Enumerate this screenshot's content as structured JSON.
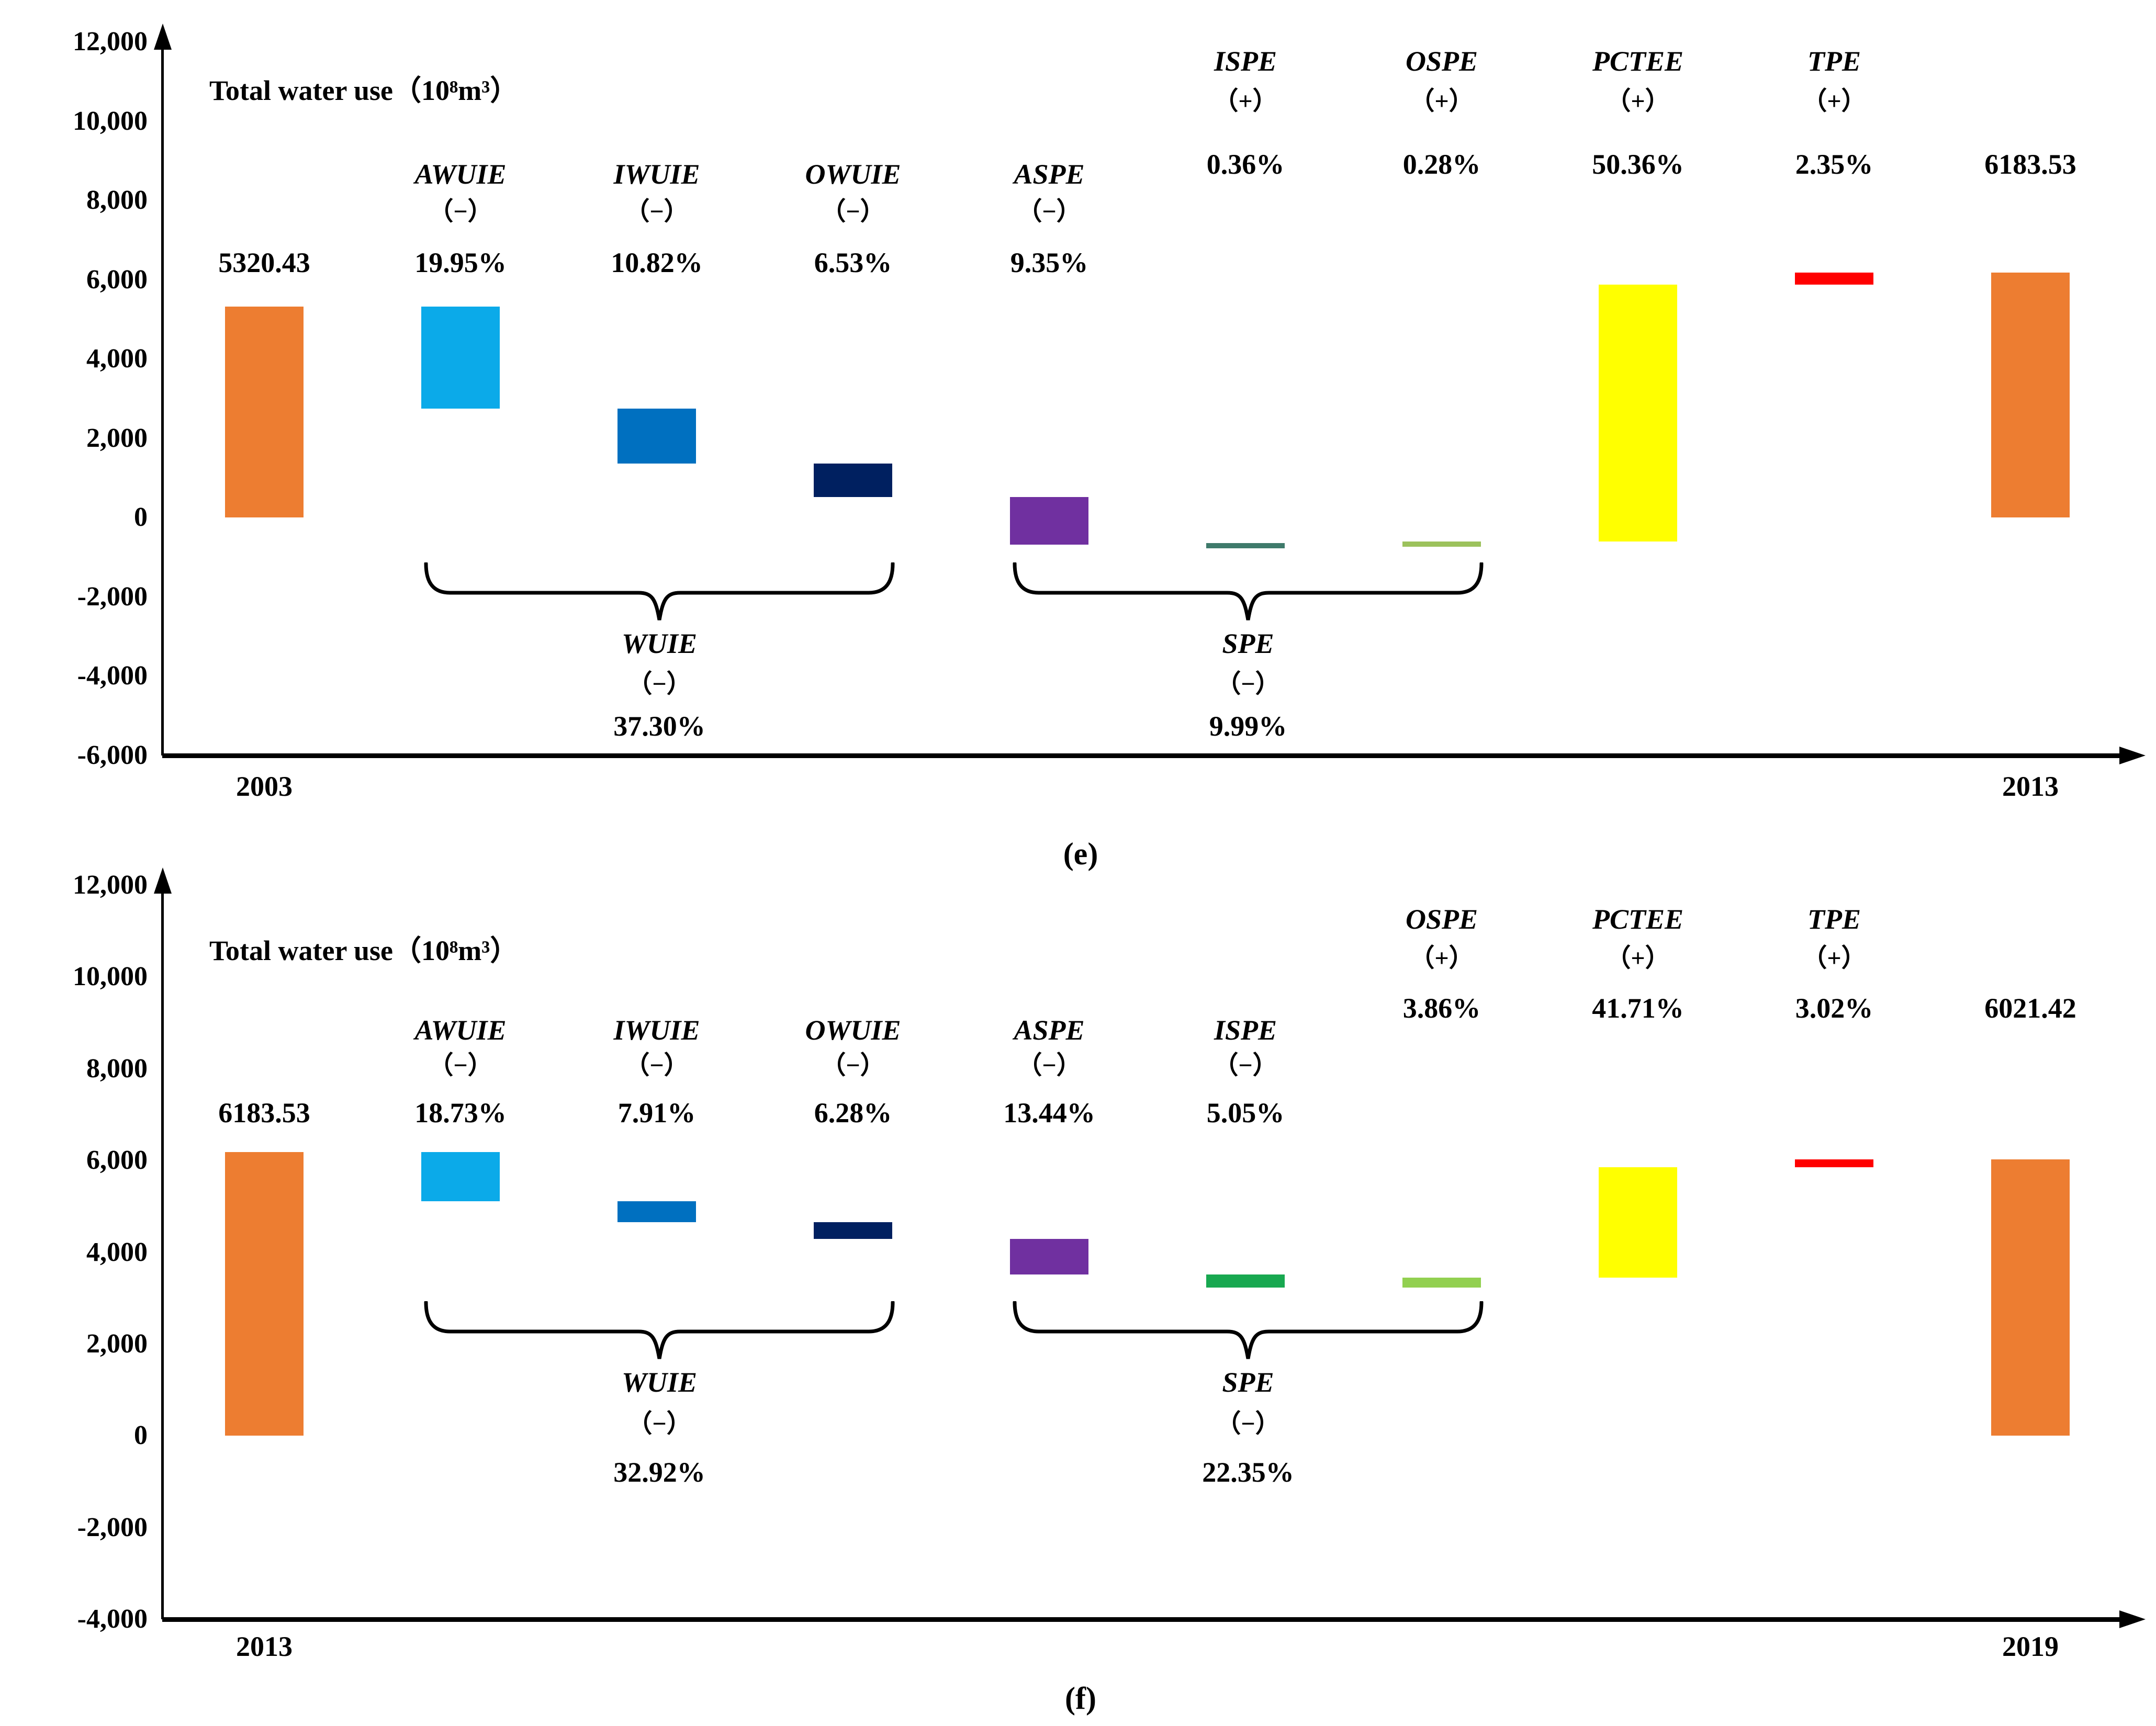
{
  "figure": {
    "caption_e": "(e)",
    "caption_f": "(f)"
  },
  "chart_data": [
    {
      "type": "bar",
      "subtype": "waterfall-decomposition",
      "panel": "e",
      "title": "Total water use（10⁸m³）",
      "x_start_year": "2003",
      "x_end_year": "2013",
      "start_total": 5320.43,
      "end_total": 6183.53,
      "y_axis": {
        "min": -6000,
        "max": 12000,
        "step": 2000,
        "grid": false,
        "ticks": [
          {
            "label": "12,000",
            "value": 12000
          },
          {
            "label": "10,000",
            "value": 10000
          },
          {
            "label": "8,000",
            "value": 8000
          },
          {
            "label": "6,000",
            "value": 6000
          },
          {
            "label": "4,000",
            "value": 4000
          },
          {
            "label": "2,000",
            "value": 2000
          },
          {
            "label": "0",
            "value": 0
          },
          {
            "label": "-2,000",
            "value": -2000
          },
          {
            "label": "-4,000",
            "value": -4000
          },
          {
            "label": "-6,000",
            "value": -6000
          }
        ]
      },
      "columns": [
        {
          "role": "total",
          "year": "2003",
          "value_label": "5320.43",
          "from": 0,
          "to": 5320.43,
          "color": "#ED7D31",
          "tier": "lower"
        },
        {
          "role": "effect",
          "name": "AWUIE",
          "sign": "（−）",
          "pct": "19.95%",
          "from": 5320.43,
          "to": 2750.8,
          "color": "#0BAAE9",
          "tier": "lower"
        },
        {
          "role": "effect",
          "name": "IWUIE",
          "sign": "（−）",
          "pct": "10.82%",
          "from": 2750.8,
          "to": 1357.2,
          "color": "#0070C0",
          "tier": "lower"
        },
        {
          "role": "effect",
          "name": "OWUIE",
          "sign": "（−）",
          "pct": "6.53%",
          "from": 1357.2,
          "to": 516.1,
          "color": "#002060",
          "tier": "lower"
        },
        {
          "role": "effect",
          "name": "ASPE",
          "sign": "（−）",
          "pct": "9.35%",
          "from": 516.1,
          "to": -688.2,
          "color": "#7030A0",
          "tier": "lower"
        },
        {
          "role": "effect",
          "name": "ISPE",
          "sign": "（+）",
          "pct": "0.36%",
          "from": -688.2,
          "to": -641.8,
          "color": "#3F7A6B",
          "tier": "upper"
        },
        {
          "role": "effect",
          "name": "OSPE",
          "sign": "（+）",
          "pct": "0.28%",
          "from": -641.8,
          "to": -605.7,
          "color": "#9CC25C",
          "tier": "upper"
        },
        {
          "role": "effect",
          "name": "PCTEE",
          "sign": "（+）",
          "pct": "50.36%",
          "from": -605.7,
          "to": 5880.7,
          "color": "#FFFF00",
          "tier": "upper"
        },
        {
          "role": "effect",
          "name": "TPE",
          "sign": "（+）",
          "pct": "2.35%",
          "from": 5880.7,
          "to": 6183.53,
          "color": "#FF0000",
          "tier": "upper"
        },
        {
          "role": "total",
          "year": "2013",
          "value_label": "6183.53",
          "from": 0,
          "to": 6183.53,
          "color": "#ED7D31",
          "tier": "upper"
        }
      ],
      "brackets": [
        {
          "name": "WUIE",
          "sign": "（−）",
          "pct": "37.30%",
          "from_col": 1,
          "to_col": 3
        },
        {
          "name": "SPE",
          "sign": "（−）",
          "pct": "9.99%",
          "from_col": 4,
          "to_col": 6
        }
      ]
    },
    {
      "type": "bar",
      "subtype": "waterfall-decomposition",
      "panel": "f",
      "title": "Total water use（10⁸m³）",
      "x_start_year": "2013",
      "x_end_year": "2019",
      "start_total": 6183.53,
      "end_total": 6021.42,
      "y_axis": {
        "min": -4000,
        "max": 12000,
        "step": 2000,
        "grid": false,
        "ticks": [
          {
            "label": "12,000",
            "value": 12000
          },
          {
            "label": "10,000",
            "value": 10000
          },
          {
            "label": "8,000",
            "value": 8000
          },
          {
            "label": "6,000",
            "value": 6000
          },
          {
            "label": "4,000",
            "value": 4000
          },
          {
            "label": "2,000",
            "value": 2000
          },
          {
            "label": "0",
            "value": 0
          },
          {
            "label": "-2,000",
            "value": -2000
          },
          {
            "label": "-4,000",
            "value": -4000
          }
        ]
      },
      "columns": [
        {
          "role": "total",
          "year": "2013",
          "value_label": "6183.53",
          "from": 0,
          "to": 6183.53,
          "color": "#ED7D31",
          "tier": "lower"
        },
        {
          "role": "effect",
          "name": "AWUIE",
          "sign": "（−）",
          "pct": "18.73%",
          "from": 6183.53,
          "to": 5106.7,
          "color": "#0BAAE9",
          "tier": "lower"
        },
        {
          "role": "effect",
          "name": "IWUIE",
          "sign": "（−）",
          "pct": "7.91%",
          "from": 5106.7,
          "to": 4652.0,
          "color": "#0070C0",
          "tier": "lower"
        },
        {
          "role": "effect",
          "name": "OWUIE",
          "sign": "（−）",
          "pct": "6.28%",
          "from": 4652.0,
          "to": 4291.0,
          "color": "#002060",
          "tier": "lower"
        },
        {
          "role": "effect",
          "name": "ASPE",
          "sign": "（−）",
          "pct": "13.44%",
          "from": 4291.0,
          "to": 3518.3,
          "color": "#7030A0",
          "tier": "lower"
        },
        {
          "role": "effect",
          "name": "ISPE",
          "sign": "（−）",
          "pct": "5.05%",
          "from": 3518.3,
          "to": 3228.0,
          "color": "#18A850",
          "tier": "lower"
        },
        {
          "role": "effect",
          "name": "OSPE",
          "sign": "（+）",
          "pct": "3.86%",
          "from": 3228.0,
          "to": 3449.9,
          "color": "#92D050",
          "tier": "upper"
        },
        {
          "role": "effect",
          "name": "PCTEE",
          "sign": "（+）",
          "pct": "41.71%",
          "from": 3449.9,
          "to": 5847.8,
          "color": "#FFFF00",
          "tier": "upper"
        },
        {
          "role": "effect",
          "name": "TPE",
          "sign": "（+）",
          "pct": "3.02%",
          "from": 5847.8,
          "to": 6021.42,
          "color": "#FF0000",
          "tier": "upper"
        },
        {
          "role": "total",
          "year": "2019",
          "value_label": "6021.42",
          "from": 0,
          "to": 6021.42,
          "color": "#ED7D31",
          "tier": "upper"
        }
      ],
      "brackets": [
        {
          "name": "WUIE",
          "sign": "（−）",
          "pct": "32.92%",
          "from_col": 1,
          "to_col": 3
        },
        {
          "name": "SPE",
          "sign": "（−）",
          "pct": "22.35%",
          "from_col": 4,
          "to_col": 6
        }
      ]
    }
  ]
}
